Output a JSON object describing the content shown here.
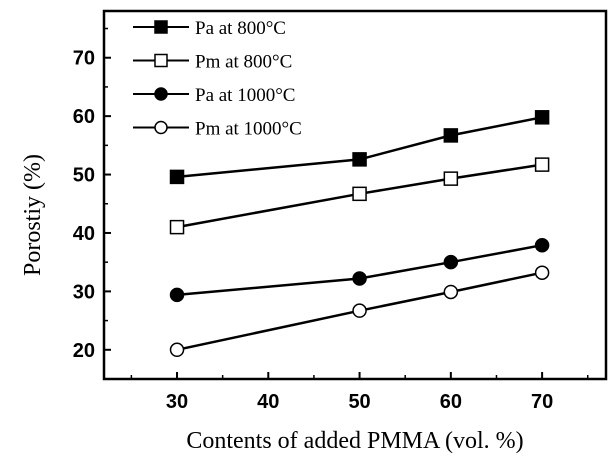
{
  "chart_data": {
    "type": "line",
    "title": "",
    "xlabel": "Contents of added PMMA (vol. %)",
    "ylabel": "Porostiy (%)",
    "xlim": [
      22,
      77
    ],
    "ylim": [
      15,
      78
    ],
    "xticks": [
      30,
      40,
      50,
      60,
      70
    ],
    "yticks": [
      20,
      30,
      40,
      50,
      60,
      70
    ],
    "x": [
      30,
      50,
      60,
      70
    ],
    "grid": false,
    "legend_position": "top-left",
    "series": [
      {
        "name": "Pa at 800°C",
        "marker": "square",
        "fill": "filled",
        "values": [
          49.6,
          52.6,
          56.7,
          59.8
        ]
      },
      {
        "name": "Pm at 800°C",
        "marker": "square",
        "fill": "open",
        "values": [
          41.0,
          46.7,
          49.3,
          51.7
        ]
      },
      {
        "name": "Pa at 1000°C",
        "marker": "circle",
        "fill": "filled",
        "values": [
          29.4,
          32.2,
          35.0,
          37.9
        ]
      },
      {
        "name": "Pm at 1000°C",
        "marker": "circle",
        "fill": "open",
        "values": [
          20.0,
          26.7,
          29.9,
          33.2
        ]
      }
    ]
  }
}
